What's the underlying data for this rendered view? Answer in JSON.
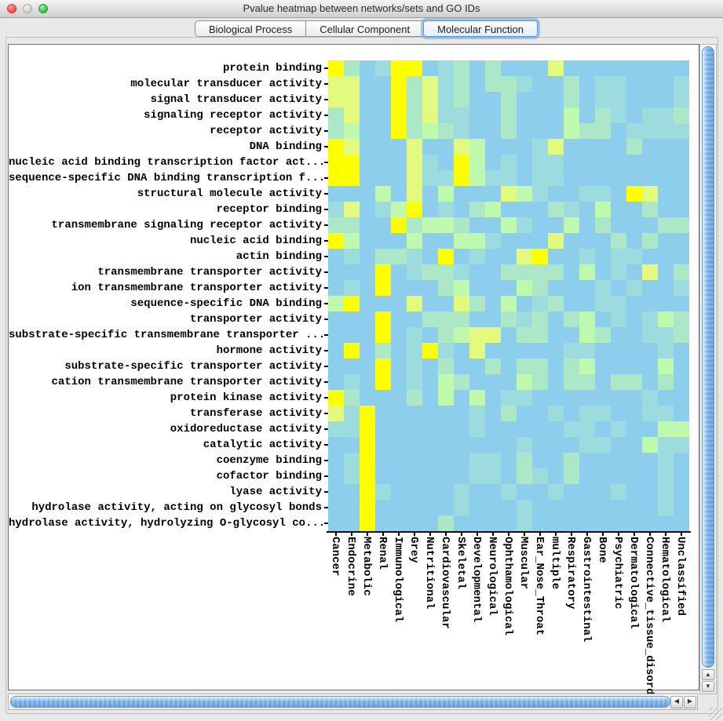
{
  "window": {
    "title": "Pvalue heatmap between networks/sets and GO IDs"
  },
  "tabs": [
    {
      "label": "Biological Process",
      "selected": false
    },
    {
      "label": "Cellular Component",
      "selected": false
    },
    {
      "label": "Molecular Function",
      "selected": true
    }
  ],
  "chart_data": {
    "type": "heatmap",
    "title": "Pvalue heatmap between networks/sets and GO IDs",
    "rows": [
      "protein binding",
      "molecular transducer activity",
      "signal transducer activity",
      "signaling receptor activity",
      "receptor activity",
      "DNA binding",
      "nucleic acid binding transcription factor act...",
      "sequence-specific DNA binding transcription f...",
      "structural molecule activity",
      "receptor binding",
      "transmembrane signaling receptor activity",
      "nucleic acid binding",
      "actin binding",
      "transmembrane transporter activity",
      "ion transmembrane transporter activity",
      "sequence-specific DNA binding",
      "transporter activity",
      "substrate-specific transmembrane transporter ...",
      "hormone activity",
      "substrate-specific transporter activity",
      "cation transmembrane transporter activity",
      "protein kinase activity",
      "transferase activity",
      "oxidoreductase activity",
      "catalytic activity",
      "coenzyme binding",
      "cofactor binding",
      "lyase activity",
      "hydrolase activity, acting on glycosyl bonds",
      "hydrolase activity, hydrolyzing O-glycosyl co..."
    ],
    "columns": [
      "Cancer",
      "Endocrine",
      "Metabolic",
      "Renal",
      "Immunological",
      "Grey",
      "Nutritional",
      "Cardiovascular",
      "Skeletal",
      "Developmental",
      "Neurological",
      "Ophthamological",
      "Muscular",
      "Ear_Nose_Throat",
      "multiple",
      "Respiratory",
      "Gastrointestinal",
      "Bone",
      "Psychiatric",
      "Dermatological",
      "Connective_tissue_disorder",
      "Hematological",
      "Unclassified"
    ],
    "palette": {
      "Y": "#ffff00",
      "y": "#e2fb7e",
      "g": "#bef9ae",
      "c": "#ace7c8",
      "t": "#9cdcde",
      "b": "#8cceec"
    },
    "cells": [
      "YcbtYYbtcbcbbbybbbbbbbb",
      "yybbYcytcbcctbbcbttbbbt",
      "yybbYcytcbbcbbbcbttbbbt",
      "cybbYcyttbbcbbbgbctbttc",
      "cgbbYcgctbbcbbbgccbtttt",
      "Yybbbybbygbbbtybbbbcbbb",
      "YYbbbytbYgbtbttbbbbbbbb",
      "YYbbbyttYgttbttbbbbbbbb",
      "bbbgbybgbbbygtbbttbYybb",
      "tybtgYbtbcgbbbctbgbbcbb",
      "ccbbYcggcbbgtbbgbcbbbcc",
      "Ygbbbgbbggtbbbybbbcbcbb",
      "btbcctbYbtbbyYbbtbttbbb",
      "bbbYbtcctbbccccbgbtbybc",
      "btbYbbbcgbbbgcbbbtbtbbt",
      "gYbbbybbycbgbtcbbttbbbb",
      "bbbYbbcccbbctcbcgbtbtgc",
      "bbbYbtbcgyybccbbgcbbttc",
      "bYbcbtYtbybbbbbttbbbbtb",
      "bbbYbtbcbbcbccbcgbbbbgb",
      "btbYbtbgcbbbgcbccbccbcb",
      "Ycbbbcbgbgbttbbbbbbbtbb",
      "ytYbbbbbbtbcbbtbttbbttb",
      "ttYbbbbbbtbbbbbttbtbbgg",
      "bbYbbbbbbbbbtbbbttbbgtt",
      "btYbbbbbbttbcbbcbbbbbtb",
      "btYbbbbbbttbctbcbbbbbtb",
      "bbYtbbbbtbbtbbtbbbtbbtb",
      "bbYbbbbbtbbbtbbbbbbbbtb",
      "bbYbbbbcbbbbtbbbbbbbbbb"
    ],
    "cell_size_px": 20,
    "grid": false,
    "legend_position": "none"
  },
  "scrollbars": {
    "vertical": {
      "up_glyph": "▲",
      "down_glyph": "▼"
    },
    "horizontal": {
      "left_glyph": "◀",
      "right_glyph": "▶"
    }
  }
}
